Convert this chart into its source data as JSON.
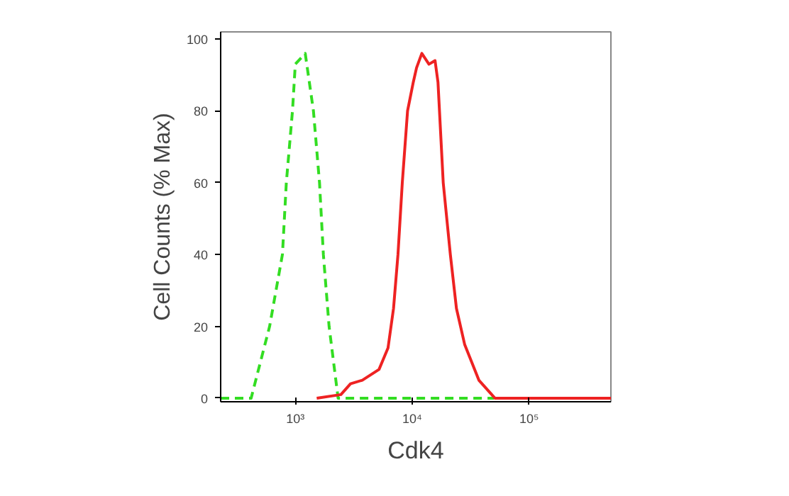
{
  "chart_data": {
    "type": "line",
    "xlabel": "Cdk4",
    "ylabel": "Cell Counts (% Max)",
    "log": "x",
    "grid": false,
    "marker": "none",
    "xlim": [
      230,
      500000
    ],
    "ylim": [
      -1,
      102
    ],
    "xticks": [
      {
        "value": 1000,
        "label": "10³"
      },
      {
        "value": 10000,
        "label": "10⁴"
      },
      {
        "value": 100000,
        "label": "10⁵"
      }
    ],
    "yticks": [
      0,
      20,
      40,
      60,
      80,
      100
    ],
    "series": [
      {
        "color": "#33dd22",
        "line_style": "dashed",
        "x": [
          230,
          419,
          603,
          776,
          838,
          946,
          1000,
          1216,
          1429,
          1611,
          1738,
          1945,
          2323,
          50000
        ],
        "values": [
          0,
          0,
          20,
          40,
          60,
          80,
          93,
          96,
          80,
          60,
          40,
          20,
          0,
          0
        ]
      },
      {
        "color": "#ee2222",
        "line_style": "solid",
        "x": [
          1525,
          2455,
          2965,
          3741,
          5200,
          6209,
          6918,
          7551,
          8222,
          9120,
          10210,
          10890,
          12080,
          13900,
          15670,
          16600,
          18410,
          21180,
          23880,
          28050,
          37150,
          50930,
          500000
        ],
        "values": [
          0,
          1,
          4,
          5,
          8,
          14,
          25,
          40,
          60,
          80,
          88,
          92,
          96,
          93,
          94,
          88,
          60,
          40,
          25,
          15,
          5,
          0,
          0
        ]
      }
    ]
  }
}
